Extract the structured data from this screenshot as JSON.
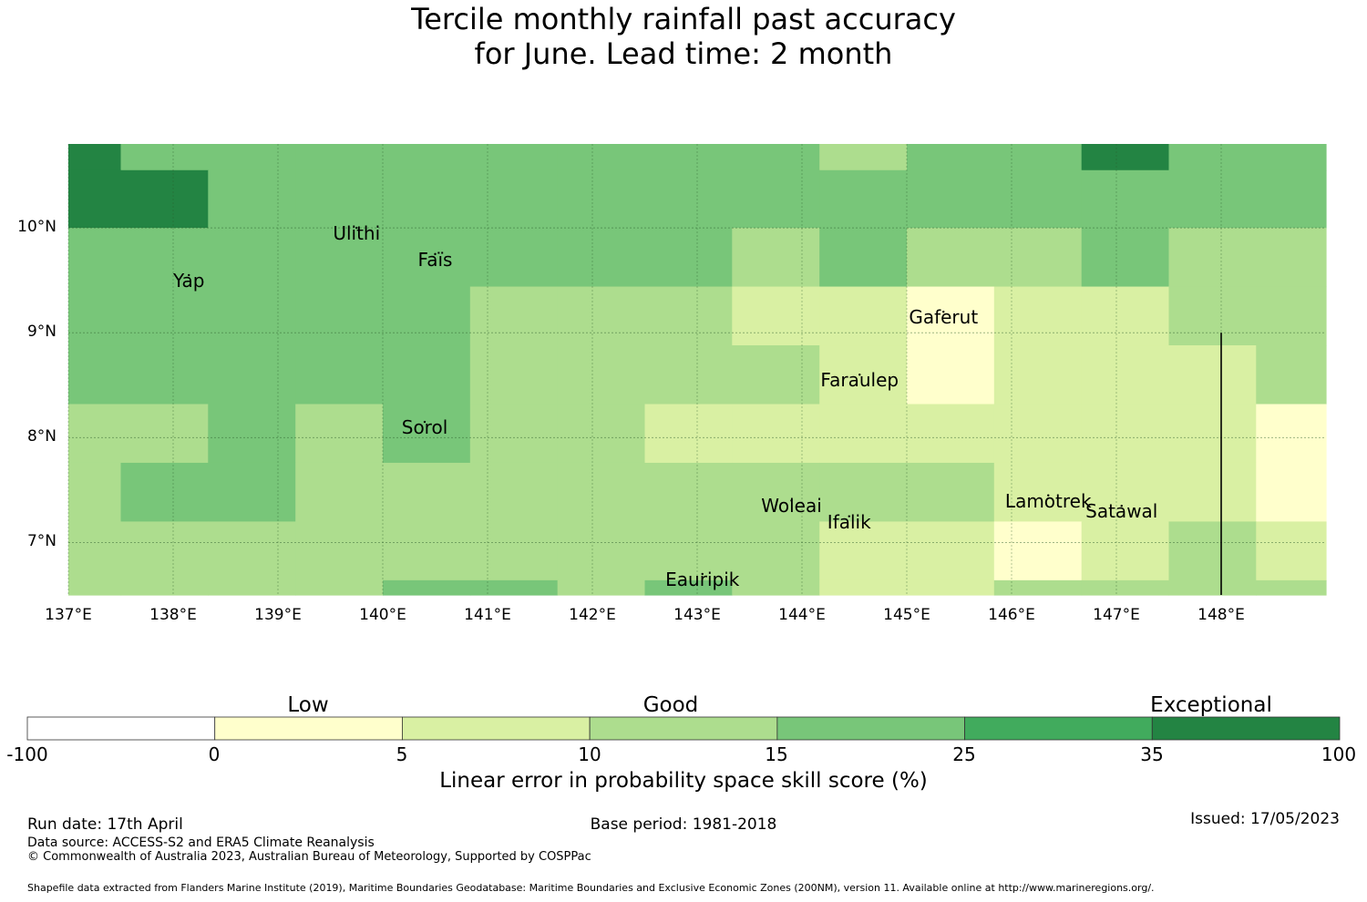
{
  "title_line1": "Tercile monthly rainfall past accuracy",
  "title_line2": "for June. Lead time: 2 month",
  "map": {
    "lon_range": [
      137,
      149
    ],
    "lat_range": [
      6.5,
      10.8
    ],
    "lon_ticks": [
      "137°E",
      "138°E",
      "139°E",
      "140°E",
      "141°E",
      "142°E",
      "143°E",
      "144°E",
      "145°E",
      "146°E",
      "147°E",
      "148°E"
    ],
    "lat_ticks": [
      "10°N",
      "9°N",
      "8°N",
      "7°N"
    ],
    "cell_lon_edges": [
      137.0,
      137.5,
      138.333,
      139.167,
      140.0,
      140.833,
      141.667,
      142.5,
      143.333,
      144.167,
      145.0,
      145.833,
      146.667,
      147.5,
      148.333,
      149.0
    ],
    "cell_lat_edges": [
      10.8,
      10.55,
      10.0,
      9.44,
      8.88,
      8.32,
      7.76,
      7.2,
      6.64,
      6.5
    ],
    "skill_categories": [
      [
        4,
        2,
        2,
        2,
        2,
        2,
        2,
        2,
        2,
        1,
        2,
        2,
        4,
        2,
        2
      ],
      [
        4,
        4,
        2,
        2,
        2,
        2,
        2,
        2,
        2,
        2,
        2,
        2,
        2,
        2,
        2
      ],
      [
        2,
        2,
        2,
        2,
        2,
        2,
        2,
        2,
        1,
        2,
        1,
        1,
        2,
        1,
        1
      ],
      [
        2,
        2,
        2,
        2,
        2,
        1,
        1,
        1,
        0,
        0,
        -1,
        0,
        0,
        1,
        1
      ],
      [
        2,
        2,
        2,
        2,
        2,
        1,
        1,
        1,
        1,
        0,
        -1,
        0,
        0,
        0,
        1
      ],
      [
        1,
        1,
        2,
        1,
        2,
        1,
        1,
        0,
        0,
        0,
        0,
        0,
        0,
        0,
        -1
      ],
      [
        1,
        2,
        2,
        1,
        1,
        1,
        1,
        1,
        1,
        1,
        1,
        0,
        0,
        0,
        -1
      ],
      [
        1,
        1,
        1,
        1,
        1,
        1,
        1,
        1,
        1,
        0,
        0,
        -1,
        0,
        1,
        0
      ],
      [
        1,
        1,
        1,
        1,
        2,
        2,
        1,
        2,
        1,
        0,
        0,
        1,
        1,
        1,
        1
      ]
    ],
    "boundary_line_lon": 148.0,
    "boundary_line_lat": [
      6.5,
      9.0
    ],
    "islands": [
      {
        "name": "Ulithi",
        "lon": 139.75,
        "lat": 10.0
      },
      {
        "name": "Faïs",
        "lon": 140.5,
        "lat": 9.75
      },
      {
        "name": "Yap",
        "lon": 138.15,
        "lat": 9.55
      },
      {
        "name": "Gaferut",
        "lon": 145.35,
        "lat": 9.2
      },
      {
        "name": "Faraulep",
        "lon": 144.55,
        "lat": 8.6
      },
      {
        "name": "Sorol",
        "lon": 140.4,
        "lat": 8.15
      },
      {
        "name": "Woleai",
        "lon": 143.9,
        "lat": 7.4
      },
      {
        "name": "Ifalik",
        "lon": 144.45,
        "lat": 7.25
      },
      {
        "name": "Lamotrek",
        "lon": 146.35,
        "lat": 7.45
      },
      {
        "name": "Satawal",
        "lon": 147.05,
        "lat": 7.35
      },
      {
        "name": "Eauripik",
        "lon": 143.05,
        "lat": 6.7
      }
    ]
  },
  "colorbar": {
    "tick_labels": [
      "-100",
      "0",
      "5",
      "10",
      "15",
      "25",
      "35",
      "100"
    ],
    "colors": [
      "#ffffff",
      "#ffffcc",
      "#d9f0a3",
      "#addd8e",
      "#78c679",
      "#41ab5d",
      "#238443"
    ],
    "category_labels": [
      "Low",
      "Good",
      "Exceptional"
    ],
    "title": "Linear error in probability space skill score (%)"
  },
  "footer": {
    "run_date": "Run date: 17th April",
    "base_period": "Base period: 1981-2018",
    "issued": "Issued: 17/05/2023",
    "data_source": "Data source: ACCESS-S2 and ERA5 Climate Reanalysis",
    "copyright": "© Commonwealth of Australia 2023, Australian Bureau of Meteorology, Supported by COSPPac",
    "shapefile": "Shapefile data extracted from Flanders Marine Institute (2019), Maritime Boundaries Geodatabase: Maritime Boundaries and Exclusive Economic Zones (200NM), version 11. Available online at http://www.marineregions.org/."
  }
}
